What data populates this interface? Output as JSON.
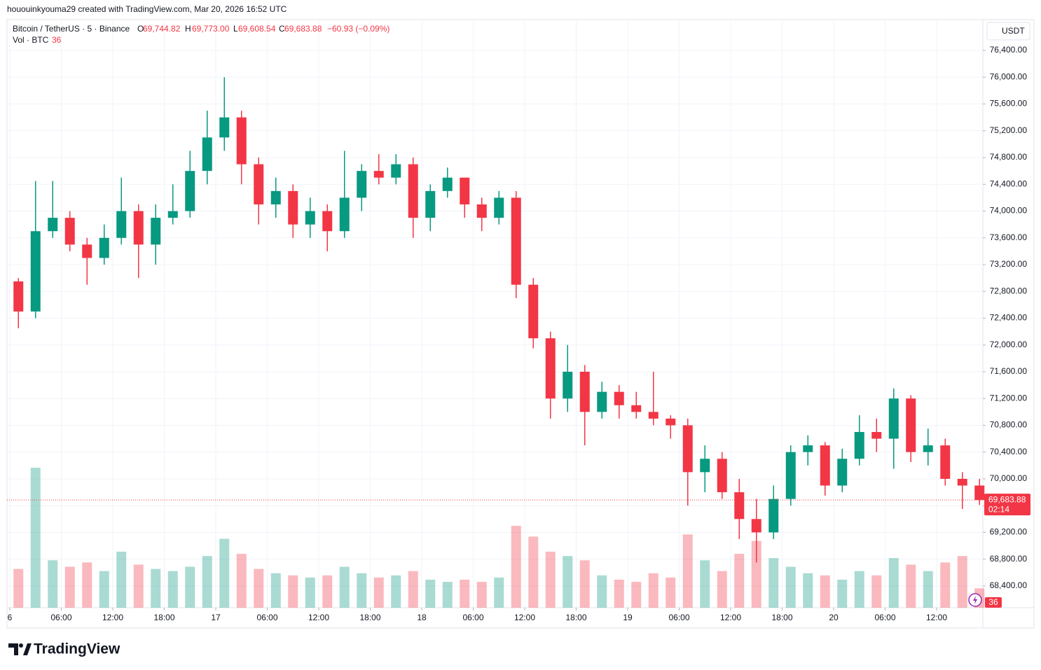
{
  "header": {
    "author_line": "hououinkyouma29 created with TradingView.com, Mar 20, 2026 16:52 UTC"
  },
  "legend": {
    "symbol": "Bitcoin / TetherUS · 5 · Binance",
    "fields": [
      {
        "key": "O",
        "value": "69,744.82"
      },
      {
        "key": "H",
        "value": "69,773.00"
      },
      {
        "key": "L",
        "value": "69,608.54"
      },
      {
        "key": "C",
        "value": "69,683.88"
      }
    ],
    "change": "−60.93 (−0.09%)",
    "volume_name": "Vol · BTC",
    "volume_value": "36"
  },
  "currency": "USDT",
  "logo": "TradingView",
  "chart_data": {
    "type": "candlestick",
    "up_color": "#089981",
    "down_color": "#f23645",
    "grid": true,
    "x": [
      "16 00:00",
      "16 02:00",
      "16 04:00",
      "16 06:00",
      "16 08:00",
      "16 10:00",
      "16 12:00",
      "16 14:00",
      "16 16:00",
      "16 18:00",
      "16 20:00",
      "16 22:00",
      "17 00:00",
      "17 02:00",
      "17 04:00",
      "17 06:00",
      "17 08:00",
      "17 10:00",
      "17 12:00",
      "17 14:00",
      "17 16:00",
      "17 18:00",
      "17 20:00",
      "17 22:00",
      "18 00:00",
      "18 02:00",
      "18 04:00",
      "18 06:00",
      "18 08:00",
      "18 10:00",
      "18 12:00",
      "18 14:00",
      "18 16:00",
      "18 18:00",
      "18 20:00",
      "18 22:00",
      "19 00:00",
      "19 02:00",
      "19 04:00",
      "19 06:00",
      "19 08:00",
      "19 10:00",
      "19 12:00",
      "19 14:00",
      "19 16:00",
      "19 18:00",
      "19 20:00",
      "19 22:00",
      "20 00:00",
      "20 02:00",
      "20 04:00",
      "20 06:00",
      "20 08:00",
      "20 10:00",
      "20 12:00",
      "20 14:00",
      "20 16:00"
    ],
    "open": [
      72950,
      72500,
      73700,
      73900,
      73500,
      73300,
      73600,
      74000,
      73500,
      73900,
      74000,
      74600,
      75100,
      75400,
      74700,
      74100,
      74300,
      73800,
      74000,
      73700,
      74200,
      74600,
      74500,
      74700,
      73900,
      74300,
      74500,
      74100,
      73900,
      74200,
      72900,
      72100,
      71200,
      71600,
      71000,
      71300,
      71100,
      71000,
      70900,
      70800,
      70100,
      70300,
      69800,
      69400,
      69200,
      69700,
      70400,
      70500,
      69900,
      70300,
      70700,
      70600,
      71200,
      70400,
      70500,
      70000,
      69900
    ],
    "high": [
      73000,
      74450,
      74450,
      74000,
      73600,
      73800,
      74500,
      74100,
      74100,
      74400,
      74900,
      75500,
      76000,
      75500,
      74800,
      74500,
      74400,
      74200,
      74100,
      74900,
      74700,
      74850,
      74850,
      74800,
      74400,
      74650,
      74500,
      74200,
      74300,
      74300,
      73000,
      72200,
      72000,
      71700,
      71450,
      71400,
      71300,
      71600,
      70950,
      70900,
      70500,
      70400,
      70000,
      69700,
      69900,
      70500,
      70650,
      70550,
      70450,
      70950,
      70900,
      71350,
      71250,
      70750,
      70600,
      70100,
      70000
    ],
    "low": [
      72250,
      72400,
      73600,
      73400,
      72900,
      73200,
      73500,
      73000,
      73200,
      73800,
      73900,
      74400,
      74900,
      74400,
      73800,
      73900,
      73600,
      73600,
      73400,
      73600,
      74000,
      74400,
      74400,
      73600,
      73700,
      74200,
      73900,
      73700,
      73800,
      72700,
      71950,
      70900,
      71000,
      70500,
      70900,
      70900,
      70900,
      70800,
      70600,
      69600,
      69800,
      69700,
      69100,
      68750,
      69100,
      69600,
      70200,
      69750,
      69800,
      70200,
      70400,
      70150,
      70250,
      70200,
      69900,
      69550,
      69610
    ],
    "close": [
      72500,
      73700,
      73900,
      73500,
      73300,
      73600,
      74000,
      73500,
      73900,
      74000,
      74600,
      75100,
      75400,
      74700,
      74100,
      74300,
      73800,
      74000,
      73700,
      74200,
      74600,
      74500,
      74700,
      73900,
      74300,
      74500,
      74100,
      73900,
      74200,
      72900,
      72100,
      71200,
      71600,
      71000,
      71300,
      71100,
      71000,
      70900,
      70800,
      70100,
      70300,
      69800,
      69400,
      69200,
      69700,
      70400,
      70500,
      69900,
      70300,
      70700,
      70600,
      71200,
      70400,
      70500,
      70000,
      69900,
      69683.88
    ],
    "volume": [
      1800,
      6500,
      2200,
      1900,
      2100,
      1700,
      2600,
      2000,
      1800,
      1700,
      1900,
      2400,
      3200,
      2500,
      1800,
      1600,
      1500,
      1400,
      1500,
      1900,
      1600,
      1400,
      1500,
      1700,
      1300,
      1200,
      1300,
      1200,
      1400,
      3800,
      3300,
      2600,
      2400,
      2200,
      1500,
      1300,
      1200,
      1600,
      1400,
      3400,
      2200,
      1700,
      2500,
      3100,
      2300,
      1900,
      1600,
      1500,
      1300,
      1700,
      1500,
      2300,
      2000,
      1700,
      2100,
      2400,
      900
    ],
    "ylim": [
      68075,
      76840
    ],
    "yticks": [
      {
        "value": 68400,
        "label": "68,400.00"
      },
      {
        "value": 68800,
        "label": "68,800.00"
      },
      {
        "value": 69200,
        "label": "69,200.00"
      },
      {
        "value": 69600,
        "label": "69,600.00"
      },
      {
        "value": 70000,
        "label": "70,000.00"
      },
      {
        "value": 70400,
        "label": "70,400.00"
      },
      {
        "value": 70800,
        "label": "70,800.00"
      },
      {
        "value": 71200,
        "label": "71,200.00"
      },
      {
        "value": 71600,
        "label": "71,600.00"
      },
      {
        "value": 72000,
        "label": "72,000.00"
      },
      {
        "value": 72400,
        "label": "72,400.00"
      },
      {
        "value": 72800,
        "label": "72,800.00"
      },
      {
        "value": 73200,
        "label": "73,200.00"
      },
      {
        "value": 73600,
        "label": "73,600.00"
      },
      {
        "value": 74000,
        "label": "74,000.00"
      },
      {
        "value": 74400,
        "label": "74,400.00"
      },
      {
        "value": 74800,
        "label": "74,800.00"
      },
      {
        "value": 75200,
        "label": "75,200.00"
      },
      {
        "value": 75600,
        "label": "75,600.00"
      },
      {
        "value": 76000,
        "label": "76,000.00"
      },
      {
        "value": 76400,
        "label": "76,400.00"
      }
    ],
    "xticks": [
      {
        "value": "16 00:00",
        "label": "6"
      },
      {
        "value": "16 06:00",
        "label": "06:00"
      },
      {
        "value": "16 12:00",
        "label": "12:00"
      },
      {
        "value": "16 18:00",
        "label": "18:00"
      },
      {
        "value": "17 00:00",
        "label": "17"
      },
      {
        "value": "17 06:00",
        "label": "06:00"
      },
      {
        "value": "17 12:00",
        "label": "12:00"
      },
      {
        "value": "17 18:00",
        "label": "18:00"
      },
      {
        "value": "18 00:00",
        "label": "18"
      },
      {
        "value": "18 06:00",
        "label": "06:00"
      },
      {
        "value": "18 12:00",
        "label": "12:00"
      },
      {
        "value": "18 18:00",
        "label": "18:00"
      },
      {
        "value": "19 00:00",
        "label": "19"
      },
      {
        "value": "19 06:00",
        "label": "06:00"
      },
      {
        "value": "19 12:00",
        "label": "12:00"
      },
      {
        "value": "19 18:00",
        "label": "18:00"
      },
      {
        "value": "20 00:00",
        "label": "20"
      },
      {
        "value": "20 06:00",
        "label": "06:00"
      },
      {
        "value": "20 12:00",
        "label": "12:00"
      }
    ],
    "last_price": {
      "value": 69683.88,
      "label": "69,683.88"
    },
    "countdown": "02:14"
  }
}
